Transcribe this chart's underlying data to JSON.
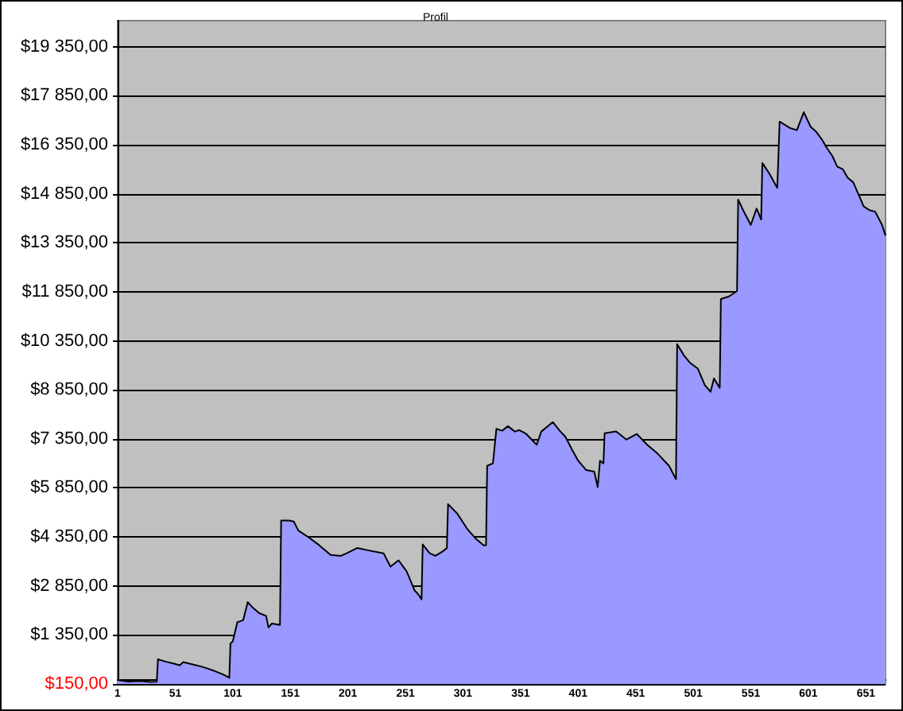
{
  "chart_data": {
    "type": "area",
    "title": "Profil",
    "x": [
      1,
      10,
      20,
      30,
      35,
      36,
      42,
      50,
      55,
      58,
      65,
      75,
      85,
      92,
      98,
      99,
      101,
      105,
      110,
      114,
      118,
      124,
      130,
      132,
      135,
      142,
      143,
      150,
      154,
      158,
      167,
      176,
      186,
      195,
      200,
      209,
      220,
      232,
      238,
      245,
      252,
      259,
      262,
      265,
      266,
      272,
      277,
      283,
      287,
      288,
      296,
      305,
      312,
      319,
      321,
      322,
      327,
      330,
      335,
      340,
      346,
      350,
      356,
      365,
      369,
      379,
      385,
      390,
      396,
      401,
      408,
      415,
      418,
      420,
      423,
      424,
      434,
      443,
      452,
      461,
      470,
      480,
      486,
      487,
      493,
      498,
      505,
      511,
      516,
      519,
      524,
      525,
      532,
      539,
      540,
      545,
      551,
      556,
      560,
      561,
      567,
      574,
      576,
      585,
      591,
      597,
      603,
      608,
      613,
      617,
      622,
      626,
      631,
      635,
      640,
      645,
      649,
      654,
      659,
      665,
      668
    ],
    "series": [
      {
        "color": "#9999ff",
        "values": [
          -30,
          -75,
          -60,
          -90,
          -80,
          605,
          540,
          470,
          420,
          520,
          460,
          370,
          250,
          150,
          40,
          1090,
          1150,
          1740,
          1800,
          2355,
          2200,
          2015,
          1935,
          1580,
          1700,
          1660,
          4850,
          4850,
          4820,
          4545,
          4335,
          4100,
          3800,
          3770,
          3850,
          4010,
          3930,
          3850,
          3440,
          3635,
          3300,
          2710,
          2600,
          2440,
          4120,
          3850,
          3770,
          3900,
          4010,
          5355,
          5065,
          4580,
          4300,
          4090,
          4100,
          6525,
          6600,
          7660,
          7600,
          7740,
          7575,
          7620,
          7500,
          7170,
          7575,
          7865,
          7600,
          7415,
          7000,
          6685,
          6395,
          6350,
          5875,
          6685,
          6600,
          7525,
          7580,
          7330,
          7500,
          7170,
          6900,
          6525,
          6115,
          10250,
          9900,
          9685,
          9500,
          9000,
          8790,
          9200,
          8910,
          11630,
          11710,
          11875,
          14675,
          14300,
          13900,
          14400,
          14065,
          15795,
          15475,
          15035,
          17060,
          16865,
          16800,
          17350,
          16900,
          16740,
          16500,
          16255,
          16000,
          15685,
          15600,
          15350,
          15200,
          14800,
          14470,
          14350,
          14305,
          13900,
          13575
        ]
      }
    ],
    "xlim": [
      1,
      668
    ],
    "xticks": [
      1,
      51,
      101,
      151,
      201,
      251,
      301,
      351,
      401,
      451,
      501,
      551,
      601,
      651
    ],
    "ylim": [
      -150,
      20150
    ],
    "yticks": [
      {
        "value": -150,
        "label": "$150,00"
      },
      {
        "value": 1350,
        "label": "$1 350,00"
      },
      {
        "value": 2850,
        "label": "$2 850,00"
      },
      {
        "value": 4350,
        "label": "$4 350,00"
      },
      {
        "value": 5850,
        "label": "$5 850,00"
      },
      {
        "value": 7350,
        "label": "$7 350,00"
      },
      {
        "value": 8850,
        "label": "$8 850,00"
      },
      {
        "value": 10350,
        "label": "$10 350,00"
      },
      {
        "value": 11850,
        "label": "$11 850,00"
      },
      {
        "value": 13350,
        "label": "$13 350,00"
      },
      {
        "value": 14850,
        "label": "$14 850,00"
      },
      {
        "value": 16350,
        "label": "$16 350,00"
      },
      {
        "value": 17850,
        "label": "$17 850,00"
      },
      {
        "value": 19350,
        "label": "$19 350,00"
      }
    ],
    "grid": "y",
    "marker": "none"
  }
}
